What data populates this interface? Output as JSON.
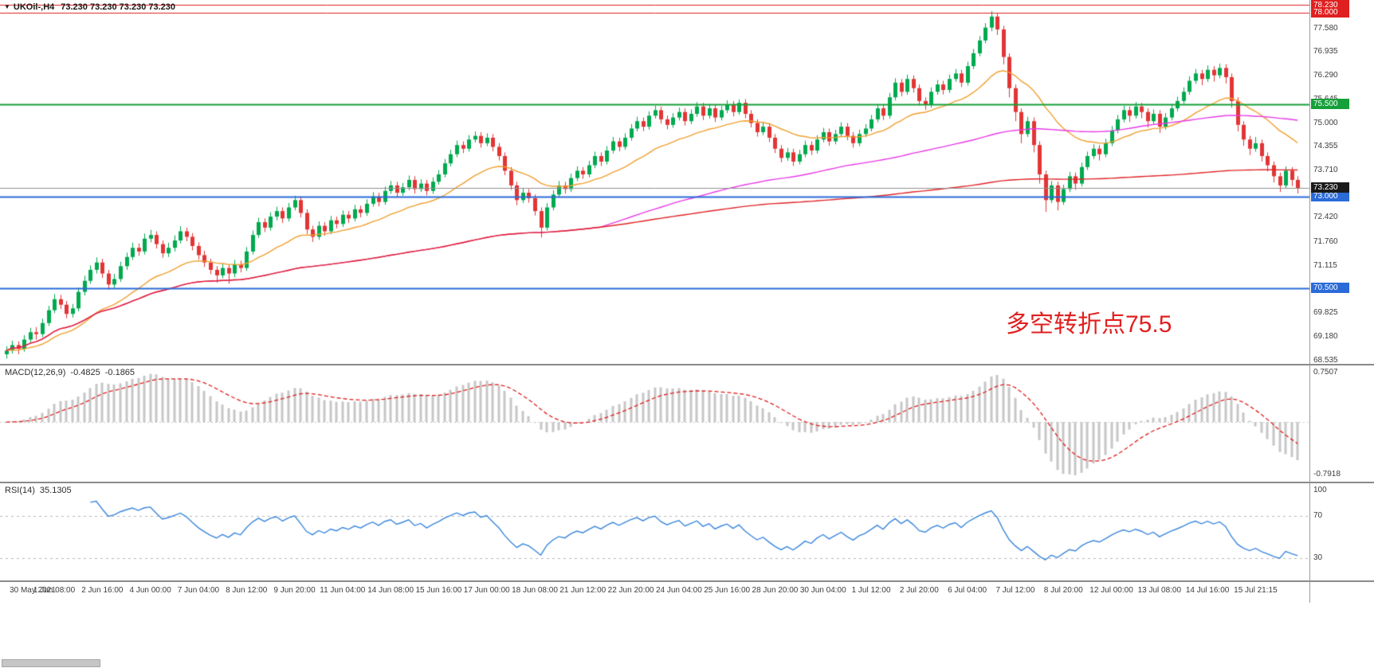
{
  "window": {
    "symbol_period": "UKOil-,H4",
    "ohlc_text": "73.230 73.230 73.230 73.230"
  },
  "colors": {
    "background": "#ffffff",
    "bull": "#00a94f",
    "bear": "#e23535",
    "ma_fast": "#f0a030",
    "ma_medium": "#e83ae8",
    "ma_slow": "#e02428",
    "level_red": "#e02020",
    "level_green": "#16a03a",
    "level_blue": "#2a6bd8",
    "bid_line": "#8f8f8f",
    "bid_badge": "#1a1a1a",
    "macd_histogram": "#c6c6c6",
    "macd_signal": "#e02020",
    "rsi_line": "#3a87dd",
    "indicator_level": "#b8b8b8",
    "axis_text": "#3c3c3c",
    "separator": "#8a8a8a",
    "annotation": "#e02020"
  },
  "chart_data": {
    "type": "candlestick",
    "symbol": "UKOil-",
    "timeframe": "H4",
    "price_axis": {
      "min": 68.46,
      "max": 78.33,
      "decimals": 3,
      "tick_values": [
        77.58,
        76.935,
        76.29,
        75.645,
        75.0,
        74.355,
        73.71,
        72.42,
        71.76,
        71.115,
        69.825,
        69.18,
        68.535
      ]
    },
    "level_lines": [
      {
        "value": 78.23,
        "label": "78.230",
        "color_key": "level_red",
        "width": 1
      },
      {
        "value": 78.0,
        "label": "78.000",
        "color_key": "level_red",
        "width": 1
      },
      {
        "value": 75.5,
        "label": "75.500",
        "color_key": "level_green",
        "width": 2
      },
      {
        "value": 73.0,
        "label": "73.000",
        "color_key": "level_blue",
        "width": 2
      },
      {
        "value": 70.5,
        "label": "70.500",
        "color_key": "level_blue",
        "width": 2
      }
    ],
    "bid": {
      "value": 73.23,
      "label": "73.230"
    },
    "moving_averages": [
      {
        "period": 21,
        "method": "ema",
        "color_key": "ma_fast"
      },
      {
        "period": 100,
        "method": "sma",
        "color_key": "ma_medium"
      },
      {
        "period": 1000,
        "method": "sma",
        "color_key": "ma_slow"
      }
    ],
    "x_labels": [
      "30 May 2021",
      "1 Jun 08:00",
      "2 Jun 16:00",
      "4 Jun 00:00",
      "7 Jun 04:00",
      "8 Jun 12:00",
      "9 Jun 20:00",
      "11 Jun 04:00",
      "14 Jun 08:00",
      "15 Jun 16:00",
      "17 Jun 00:00",
      "18 Jun 08:00",
      "21 Jun 12:00",
      "22 Jun 20:00",
      "24 Jun 04:00",
      "25 Jun 16:00",
      "28 Jun 20:00",
      "30 Jun 04:00",
      "1 Jul 12:00",
      "2 Jul 20:00",
      "6 Jul 04:00",
      "7 Jul 12:00",
      "8 Jul 20:00",
      "12 Jul 00:00",
      "13 Jul 08:00",
      "14 Jul 16:00",
      "15 Jul 21:15"
    ],
    "candles_per_label": 8,
    "indicators": {
      "macd": {
        "label": "MACD(12,26,9)",
        "fast": 12,
        "slow": 26,
        "signal": 9,
        "value_main": "-0.4825",
        "value_signal": "-0.1865",
        "scale_max": 0.7507,
        "scale_min": -0.7918,
        "axis_labels": [
          "0.7507",
          "-0.7918"
        ]
      },
      "rsi": {
        "label": "RSI(14)",
        "period": 14,
        "value": "35.1305",
        "levels": [
          70,
          30
        ],
        "scale": [
          10,
          100
        ],
        "axis_labels": [
          "100",
          "70",
          "30"
        ]
      }
    },
    "annotation": {
      "text": "多空转折点75.5"
    },
    "candles": [
      [
        68.7,
        68.92,
        68.58,
        68.8
      ],
      [
        68.8,
        69.07,
        68.72,
        68.95
      ],
      [
        68.95,
        69.05,
        68.7,
        68.85
      ],
      [
        68.85,
        69.22,
        68.77,
        69.1
      ],
      [
        69.1,
        69.42,
        69.02,
        69.3
      ],
      [
        69.3,
        69.44,
        69.1,
        69.25
      ],
      [
        69.25,
        69.67,
        69.17,
        69.55
      ],
      [
        69.55,
        70.02,
        69.47,
        69.9
      ],
      [
        69.9,
        70.34,
        69.82,
        70.2
      ],
      [
        70.2,
        70.32,
        69.93,
        70.05
      ],
      [
        70.05,
        70.15,
        69.68,
        69.8
      ],
      [
        69.8,
        70.07,
        69.7,
        69.95
      ],
      [
        69.95,
        70.52,
        69.87,
        70.4
      ],
      [
        70.4,
        70.84,
        70.3,
        70.7
      ],
      [
        70.7,
        71.12,
        70.62,
        71.0
      ],
      [
        71.0,
        71.34,
        70.9,
        71.2
      ],
      [
        71.2,
        71.3,
        70.78,
        70.9
      ],
      [
        70.9,
        71.0,
        70.46,
        70.6
      ],
      [
        70.6,
        70.89,
        70.5,
        70.75
      ],
      [
        70.75,
        71.22,
        70.67,
        71.1
      ],
      [
        71.1,
        71.47,
        71.0,
        71.35
      ],
      [
        71.35,
        71.74,
        71.27,
        71.6
      ],
      [
        71.6,
        71.72,
        71.38,
        71.5
      ],
      [
        71.5,
        71.99,
        71.42,
        71.85
      ],
      [
        71.85,
        72.09,
        71.75,
        71.95
      ],
      [
        71.95,
        72.05,
        71.58,
        71.7
      ],
      [
        71.7,
        71.8,
        71.33,
        71.45
      ],
      [
        71.45,
        71.74,
        71.35,
        71.6
      ],
      [
        71.6,
        71.94,
        71.5,
        71.8
      ],
      [
        71.8,
        72.19,
        71.72,
        72.05
      ],
      [
        72.05,
        72.15,
        71.78,
        71.9
      ],
      [
        71.9,
        72.0,
        71.53,
        71.65
      ],
      [
        71.65,
        71.75,
        71.28,
        71.4
      ],
      [
        71.4,
        71.52,
        71.08,
        71.2
      ],
      [
        71.2,
        71.3,
        70.88,
        71.0
      ],
      [
        71.0,
        71.1,
        70.65,
        70.85
      ],
      [
        70.85,
        71.17,
        70.77,
        71.05
      ],
      [
        71.05,
        71.15,
        70.62,
        70.9
      ],
      [
        70.9,
        71.27,
        70.8,
        71.15
      ],
      [
        71.15,
        71.25,
        70.93,
        71.05
      ],
      [
        71.05,
        71.62,
        70.97,
        71.5
      ],
      [
        71.5,
        72.07,
        71.42,
        71.95
      ],
      [
        71.95,
        72.42,
        71.87,
        72.3
      ],
      [
        72.3,
        72.4,
        72.03,
        72.15
      ],
      [
        72.15,
        72.57,
        72.07,
        72.45
      ],
      [
        72.45,
        72.72,
        72.35,
        72.6
      ],
      [
        72.6,
        72.7,
        72.28,
        72.4
      ],
      [
        72.4,
        72.82,
        72.32,
        72.7
      ],
      [
        72.7,
        73.02,
        72.62,
        72.9
      ],
      [
        72.9,
        73.0,
        72.43,
        72.55
      ],
      [
        72.55,
        72.65,
        71.98,
        72.1
      ],
      [
        72.1,
        72.2,
        71.76,
        71.9
      ],
      [
        71.9,
        72.32,
        71.82,
        72.2
      ],
      [
        72.2,
        72.3,
        71.93,
        72.05
      ],
      [
        72.05,
        72.47,
        71.97,
        72.35
      ],
      [
        72.35,
        72.45,
        72.13,
        72.25
      ],
      [
        72.25,
        72.62,
        72.17,
        72.5
      ],
      [
        72.5,
        72.6,
        72.28,
        72.4
      ],
      [
        72.4,
        72.77,
        72.32,
        72.65
      ],
      [
        72.65,
        72.75,
        72.43,
        72.55
      ],
      [
        72.55,
        72.92,
        72.47,
        72.8
      ],
      [
        72.8,
        73.12,
        72.72,
        73.0
      ],
      [
        73.0,
        73.1,
        72.73,
        72.85
      ],
      [
        72.85,
        73.27,
        72.77,
        73.15
      ],
      [
        73.15,
        73.42,
        73.07,
        73.3
      ],
      [
        73.3,
        73.4,
        72.98,
        73.1
      ],
      [
        73.1,
        73.37,
        73.02,
        73.25
      ],
      [
        73.25,
        73.57,
        73.17,
        73.45
      ],
      [
        73.45,
        73.55,
        73.08,
        73.2
      ],
      [
        73.2,
        73.47,
        73.12,
        73.35
      ],
      [
        73.35,
        73.45,
        73.03,
        73.15
      ],
      [
        73.15,
        73.52,
        73.07,
        73.4
      ],
      [
        73.4,
        73.72,
        73.32,
        73.6
      ],
      [
        73.6,
        74.02,
        73.52,
        73.9
      ],
      [
        73.9,
        74.27,
        73.82,
        74.15
      ],
      [
        74.15,
        74.52,
        74.07,
        74.4
      ],
      [
        74.4,
        74.5,
        74.18,
        74.3
      ],
      [
        74.3,
        74.67,
        74.22,
        74.55
      ],
      [
        74.55,
        74.77,
        74.47,
        74.65
      ],
      [
        74.65,
        74.75,
        74.33,
        74.45
      ],
      [
        74.45,
        74.72,
        74.37,
        74.6
      ],
      [
        74.6,
        74.7,
        74.23,
        74.35
      ],
      [
        74.35,
        74.45,
        73.98,
        74.1
      ],
      [
        74.1,
        74.2,
        73.58,
        73.7
      ],
      [
        73.7,
        73.8,
        73.18,
        73.3
      ],
      [
        73.3,
        73.4,
        72.76,
        72.9
      ],
      [
        72.9,
        73.22,
        72.82,
        73.1
      ],
      [
        73.1,
        73.2,
        72.83,
        72.95
      ],
      [
        72.95,
        73.05,
        72.48,
        72.6
      ],
      [
        72.6,
        72.7,
        71.88,
        72.15
      ],
      [
        72.15,
        72.82,
        72.07,
        72.7
      ],
      [
        72.7,
        73.17,
        72.62,
        73.05
      ],
      [
        73.05,
        73.42,
        72.97,
        73.3
      ],
      [
        73.3,
        73.4,
        73.08,
        73.2
      ],
      [
        73.2,
        73.62,
        73.12,
        73.5
      ],
      [
        73.5,
        73.82,
        73.42,
        73.7
      ],
      [
        73.7,
        73.8,
        73.48,
        73.6
      ],
      [
        73.6,
        73.97,
        73.52,
        73.85
      ],
      [
        73.85,
        74.22,
        73.77,
        74.1
      ],
      [
        74.1,
        74.2,
        73.83,
        73.95
      ],
      [
        73.95,
        74.37,
        73.87,
        74.25
      ],
      [
        74.25,
        74.62,
        74.17,
        74.5
      ],
      [
        74.5,
        74.6,
        74.23,
        74.35
      ],
      [
        74.35,
        74.72,
        74.27,
        74.6
      ],
      [
        74.6,
        74.97,
        74.52,
        74.85
      ],
      [
        74.85,
        75.17,
        74.77,
        75.05
      ],
      [
        75.05,
        75.15,
        74.78,
        74.9
      ],
      [
        74.9,
        75.32,
        74.82,
        75.2
      ],
      [
        75.2,
        75.47,
        75.12,
        75.35
      ],
      [
        75.35,
        75.45,
        74.98,
        75.1
      ],
      [
        75.1,
        75.2,
        74.83,
        74.95
      ],
      [
        74.95,
        75.27,
        74.87,
        75.15
      ],
      [
        75.15,
        75.42,
        75.07,
        75.3
      ],
      [
        75.3,
        75.4,
        74.93,
        75.05
      ],
      [
        75.05,
        75.37,
        74.97,
        75.25
      ],
      [
        75.25,
        75.57,
        75.17,
        75.45
      ],
      [
        75.45,
        75.55,
        75.08,
        75.2
      ],
      [
        75.2,
        75.52,
        75.12,
        75.4
      ],
      [
        75.4,
        75.5,
        75.03,
        75.15
      ],
      [
        75.15,
        75.47,
        75.07,
        75.35
      ],
      [
        75.35,
        75.62,
        75.27,
        75.5
      ],
      [
        75.5,
        75.6,
        75.18,
        75.3
      ],
      [
        75.3,
        75.64,
        75.22,
        75.55
      ],
      [
        75.55,
        75.65,
        75.13,
        75.25
      ],
      [
        75.25,
        75.35,
        74.88,
        75.0
      ],
      [
        75.0,
        75.1,
        74.63,
        74.75
      ],
      [
        74.75,
        75.02,
        74.67,
        74.9
      ],
      [
        74.9,
        75.0,
        74.48,
        74.6
      ],
      [
        74.6,
        74.7,
        74.18,
        74.3
      ],
      [
        74.3,
        74.4,
        73.93,
        74.05
      ],
      [
        74.05,
        74.32,
        73.97,
        74.2
      ],
      [
        74.2,
        74.3,
        73.83,
        73.95
      ],
      [
        73.95,
        74.27,
        73.87,
        74.15
      ],
      [
        74.15,
        74.52,
        74.07,
        74.4
      ],
      [
        74.4,
        74.5,
        74.13,
        74.25
      ],
      [
        74.25,
        74.67,
        74.17,
        74.55
      ],
      [
        74.55,
        74.87,
        74.47,
        74.75
      ],
      [
        74.75,
        74.85,
        74.38,
        74.5
      ],
      [
        74.5,
        74.82,
        74.42,
        74.7
      ],
      [
        74.7,
        75.02,
        74.62,
        74.9
      ],
      [
        74.9,
        75.0,
        74.53,
        74.65
      ],
      [
        74.65,
        74.75,
        74.33,
        74.45
      ],
      [
        74.45,
        74.82,
        74.37,
        74.7
      ],
      [
        74.7,
        74.97,
        74.62,
        74.85
      ],
      [
        74.85,
        75.22,
        74.77,
        75.1
      ],
      [
        75.1,
        75.52,
        75.02,
        75.4
      ],
      [
        75.4,
        75.5,
        75.08,
        75.2
      ],
      [
        75.2,
        75.82,
        75.12,
        75.7
      ],
      [
        75.7,
        76.22,
        75.62,
        76.1
      ],
      [
        76.1,
        76.2,
        75.73,
        75.85
      ],
      [
        75.85,
        76.32,
        75.77,
        76.2
      ],
      [
        76.2,
        76.3,
        75.83,
        75.95
      ],
      [
        75.95,
        76.05,
        75.48,
        75.6
      ],
      [
        75.6,
        75.7,
        75.36,
        75.5
      ],
      [
        75.5,
        75.97,
        75.42,
        75.85
      ],
      [
        75.85,
        76.17,
        75.77,
        76.05
      ],
      [
        76.05,
        76.15,
        75.78,
        75.9
      ],
      [
        75.9,
        76.32,
        75.82,
        76.2
      ],
      [
        76.2,
        76.47,
        76.12,
        76.35
      ],
      [
        76.35,
        76.45,
        75.98,
        76.1
      ],
      [
        76.1,
        76.67,
        76.02,
        76.55
      ],
      [
        76.55,
        77.02,
        76.47,
        76.9
      ],
      [
        76.9,
        77.37,
        76.82,
        77.25
      ],
      [
        77.25,
        77.72,
        77.17,
        77.6
      ],
      [
        77.6,
        78.05,
        77.5,
        77.9
      ],
      [
        77.9,
        78.0,
        77.4,
        77.55
      ],
      [
        77.55,
        77.65,
        76.6,
        76.8
      ],
      [
        76.8,
        76.9,
        75.7,
        75.95
      ],
      [
        75.95,
        76.05,
        75.05,
        75.3
      ],
      [
        75.3,
        75.4,
        74.45,
        74.7
      ],
      [
        74.7,
        75.17,
        74.62,
        75.05
      ],
      [
        75.05,
        75.15,
        74.2,
        74.4
      ],
      [
        74.4,
        74.5,
        73.35,
        73.6
      ],
      [
        73.6,
        73.7,
        72.58,
        72.9
      ],
      [
        72.9,
        73.42,
        72.82,
        73.3
      ],
      [
        73.3,
        73.4,
        72.62,
        72.85
      ],
      [
        72.85,
        73.32,
        72.77,
        73.2
      ],
      [
        73.2,
        73.67,
        73.12,
        73.55
      ],
      [
        73.55,
        73.65,
        73.18,
        73.35
      ],
      [
        73.35,
        73.92,
        73.27,
        73.8
      ],
      [
        73.8,
        74.22,
        73.72,
        74.1
      ],
      [
        74.1,
        74.42,
        74.02,
        74.3
      ],
      [
        74.3,
        74.4,
        73.98,
        74.15
      ],
      [
        74.15,
        74.57,
        74.07,
        74.45
      ],
      [
        74.45,
        74.92,
        74.37,
        74.8
      ],
      [
        74.8,
        75.22,
        74.72,
        75.1
      ],
      [
        75.1,
        75.47,
        75.02,
        75.35
      ],
      [
        75.35,
        75.45,
        75.03,
        75.2
      ],
      [
        75.2,
        75.57,
        75.12,
        75.45
      ],
      [
        75.45,
        75.55,
        75.13,
        75.3
      ],
      [
        75.3,
        75.4,
        74.88,
        75.05
      ],
      [
        75.05,
        75.37,
        74.97,
        75.25
      ],
      [
        75.25,
        75.35,
        74.73,
        74.9
      ],
      [
        74.9,
        75.27,
        74.82,
        75.15
      ],
      [
        75.15,
        75.52,
        75.07,
        75.4
      ],
      [
        75.4,
        75.72,
        75.32,
        75.6
      ],
      [
        75.6,
        75.97,
        75.52,
        75.85
      ],
      [
        75.85,
        76.27,
        75.77,
        76.15
      ],
      [
        76.15,
        76.47,
        76.07,
        76.35
      ],
      [
        76.35,
        76.45,
        76.03,
        76.2
      ],
      [
        76.2,
        76.57,
        76.12,
        76.45
      ],
      [
        76.45,
        76.55,
        76.13,
        76.3
      ],
      [
        76.3,
        76.62,
        76.22,
        76.5
      ],
      [
        76.5,
        76.6,
        76.08,
        76.25
      ],
      [
        76.25,
        76.35,
        75.42,
        75.6
      ],
      [
        75.6,
        75.7,
        74.77,
        74.95
      ],
      [
        74.95,
        75.05,
        74.38,
        74.55
      ],
      [
        74.55,
        74.65,
        74.13,
        74.3
      ],
      [
        74.3,
        74.62,
        74.22,
        74.45
      ],
      [
        74.45,
        74.55,
        73.95,
        74.1
      ],
      [
        74.1,
        74.2,
        73.68,
        73.85
      ],
      [
        73.85,
        73.95,
        73.38,
        73.55
      ],
      [
        73.55,
        73.65,
        73.12,
        73.3
      ],
      [
        73.3,
        73.82,
        73.22,
        73.7
      ],
      [
        73.7,
        73.8,
        73.28,
        73.45
      ],
      [
        73.45,
        73.55,
        73.08,
        73.23
      ]
    ]
  }
}
